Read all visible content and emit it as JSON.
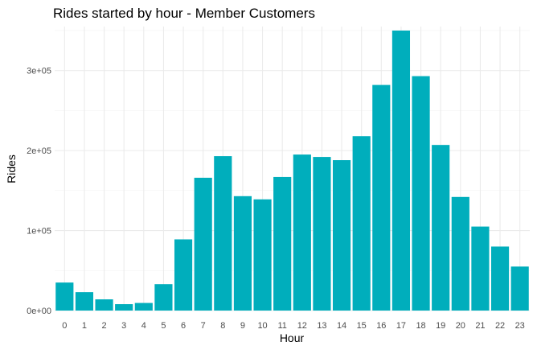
{
  "chart_data": {
    "type": "bar",
    "title": "Rides started by hour - Member Customers",
    "xlabel": "Hour",
    "ylabel": "Rides",
    "categories": [
      "0",
      "1",
      "2",
      "3",
      "4",
      "5",
      "6",
      "7",
      "8",
      "9",
      "10",
      "11",
      "12",
      "13",
      "14",
      "15",
      "16",
      "17",
      "18",
      "19",
      "20",
      "21",
      "22",
      "23"
    ],
    "values": [
      35000,
      23000,
      14000,
      8000,
      9500,
      33000,
      89000,
      166000,
      193000,
      143000,
      139000,
      167000,
      195000,
      192000,
      188000,
      218000,
      282000,
      350000,
      293000,
      207000,
      142000,
      105000,
      80000,
      55000
    ],
    "ylim": [
      0,
      355000
    ],
    "yticks": [
      0,
      100000,
      200000,
      300000
    ],
    "ytick_labels": [
      "0e+00",
      "1e+05",
      "2e+05",
      "3e+05"
    ],
    "grid": true,
    "legend": "none",
    "colors": {
      "bar": "#00aebc",
      "grid_major": "#ebebeb",
      "grid_minor": "#f3f3f3",
      "text": "#4d4d4d",
      "background": "#ffffff"
    }
  }
}
